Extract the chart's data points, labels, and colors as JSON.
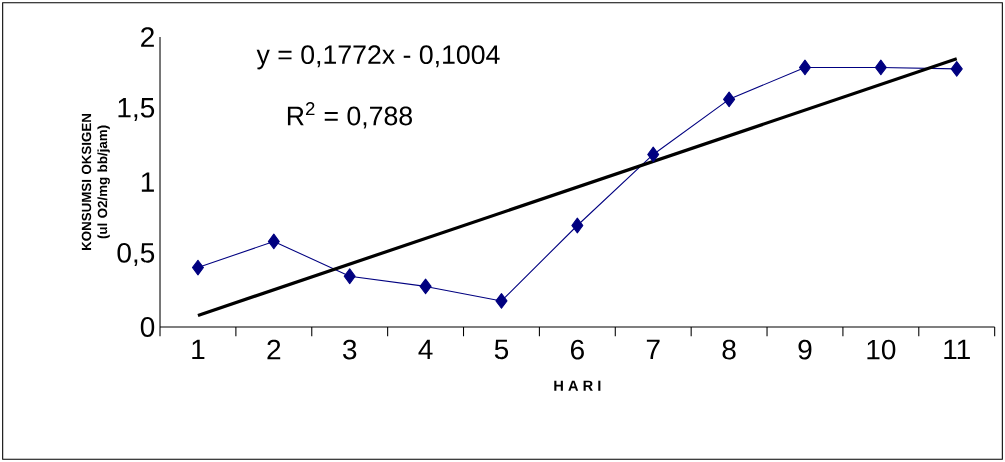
{
  "chart_data": {
    "type": "line",
    "xlabel": "H A R I",
    "ylabel": "KONSUMSI OKSIGEN (ul O2/mg bb/jam)",
    "x": [
      1,
      2,
      3,
      4,
      5,
      6,
      7,
      8,
      9,
      10,
      11
    ],
    "xlim": [
      0.5,
      11.5
    ],
    "xticks": [
      1,
      2,
      3,
      4,
      5,
      6,
      7,
      8,
      9,
      10,
      11
    ],
    "ylim": [
      0,
      2
    ],
    "yticks": [
      0,
      {
        "value": 0.5,
        "label": "0,5"
      },
      1,
      {
        "value": 1.5,
        "label": "1,5"
      },
      2
    ],
    "series": [
      {
        "color": "#000080",
        "marker": "diamond",
        "values": [
          0.41,
          0.59,
          0.35,
          0.28,
          0.18,
          0.7,
          1.19,
          1.57,
          1.79,
          1.79,
          1.78
        ]
      },
      {
        "color": "#000000",
        "marker": "none",
        "x": [
          1,
          11
        ],
        "values": [
          0.08,
          1.85
        ]
      }
    ],
    "annotations": [
      "y = 0,1772x - 0,1004",
      "R$^{2}$ = 0,788"
    ],
    "grid": false
  }
}
